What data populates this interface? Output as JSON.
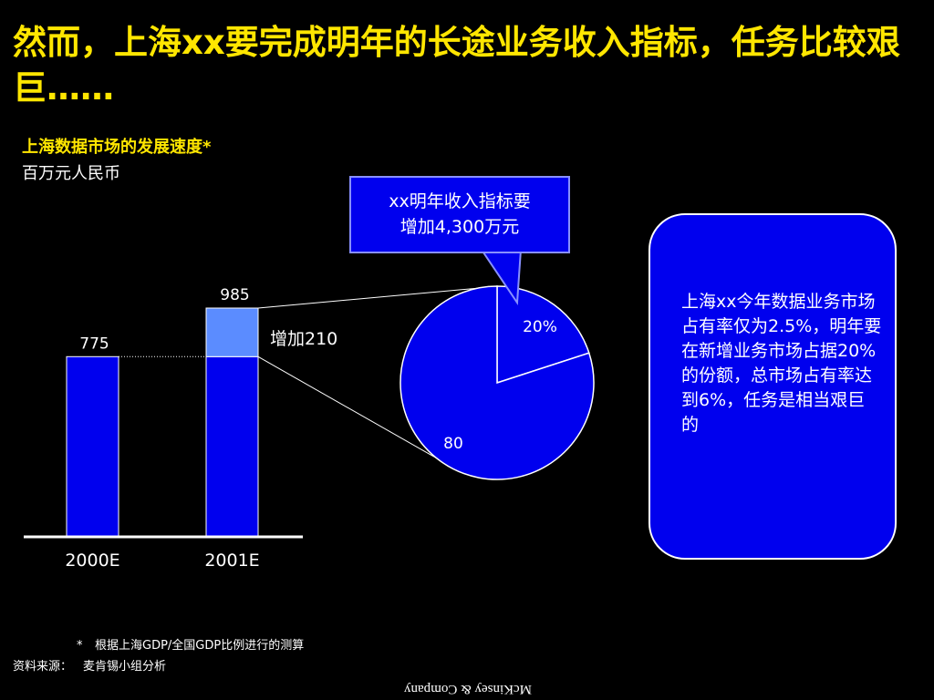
{
  "slide": {
    "title": "然而，上海xx要完成明年的长途业务收入指标，任务比较艰巨……",
    "subtitle": "上海数据市场的发展速度*",
    "unit": "百万元人民币",
    "callout": {
      "line1": "xx明年收入指标要",
      "line2": "增加4,300万元"
    },
    "note": "上海xx今年数据业务市场占有率仅为2.5%，明年要在新增业务市场占据20%的份额，总市场占有率达到6%，任务是相当艰巨的",
    "footnote": {
      "mark": "*",
      "text": "根据上海GDP/全国GDP比例进行的测算"
    },
    "source": {
      "label": "资料来源：",
      "text": "麦肯锡小组分析"
    },
    "brand": "McKinsey & Company"
  },
  "colors": {
    "background": "#000000",
    "title": "#ffe600",
    "bar": "#0000ee",
    "increment": "#5b8cff",
    "pie": "#0000ee",
    "text": "#ffffff"
  },
  "chart_data": [
    {
      "type": "bar",
      "categories": [
        "2000E",
        "2001E"
      ],
      "values": [
        775,
        985
      ],
      "base_value": 775,
      "increment_value": 210,
      "increment_label": "增加210",
      "labels": [
        "775",
        "985"
      ]
    },
    {
      "type": "pie",
      "slices": [
        {
          "label": "20%",
          "value": 20
        },
        {
          "label": "80",
          "value": 80
        }
      ]
    }
  ]
}
